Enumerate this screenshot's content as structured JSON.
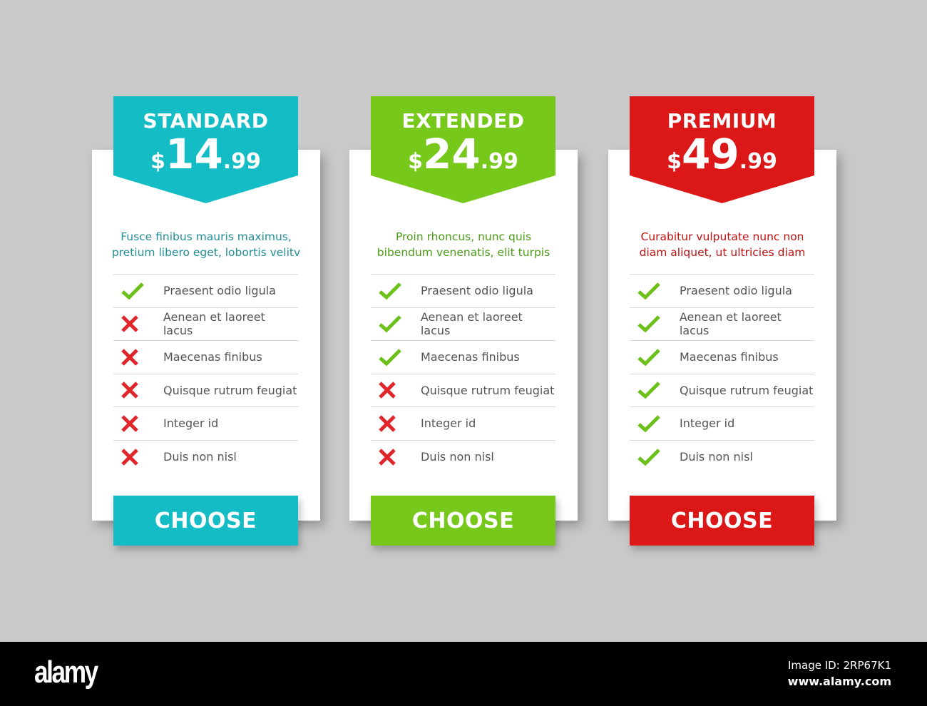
{
  "colors": {
    "background": "#c9c9c9",
    "standard": "#14bcc6",
    "extended": "#76c81a",
    "premium": "#dc1717",
    "check": "#6cc01a",
    "cross": "#e0262b"
  },
  "plans": [
    {
      "name": "STANDARD",
      "currency": "$",
      "price_int": "14",
      "price_dec": ".99",
      "accent": "#14bcc6",
      "desc_color": "#1f8f96",
      "desc1": "Fusce finibus mauris maximus,",
      "desc2": "pretium libero eget, lobortis velitv",
      "features": [
        {
          "label": "Praesent odio ligula",
          "included": true
        },
        {
          "label": "Aenean et laoreet lacus",
          "included": false
        },
        {
          "label": "Maecenas finibus",
          "included": false
        },
        {
          "label": "Quisque rutrum feugiat",
          "included": false
        },
        {
          "label": "Integer id",
          "included": false
        },
        {
          "label": "Duis non nisl",
          "included": false
        }
      ],
      "button": "CHOOSE"
    },
    {
      "name": "EXTENDED",
      "currency": "$",
      "price_int": "24",
      "price_dec": ".99",
      "accent": "#76c81a",
      "desc_color": "#4a9a15",
      "desc1": "Proin rhoncus, nunc quis",
      "desc2": "bibendum venenatis, elit turpis",
      "features": [
        {
          "label": "Praesent odio ligula",
          "included": true
        },
        {
          "label": "Aenean et laoreet lacus",
          "included": true
        },
        {
          "label": "Maecenas finibus",
          "included": true
        },
        {
          "label": "Quisque rutrum feugiat",
          "included": false
        },
        {
          "label": "Integer id",
          "included": false
        },
        {
          "label": "Duis non nisl",
          "included": false
        }
      ],
      "button": "CHOOSE"
    },
    {
      "name": "PREMIUM",
      "currency": "$",
      "price_int": "49",
      "price_dec": ".99",
      "accent": "#dc1717",
      "desc_color": "#c01010",
      "desc1": "Curabitur vulputate nunc non",
      "desc2": "diam aliquet, ut ultricies diam",
      "features": [
        {
          "label": "Praesent odio ligula",
          "included": true
        },
        {
          "label": "Aenean et laoreet lacus",
          "included": true
        },
        {
          "label": "Maecenas finibus",
          "included": true
        },
        {
          "label": "Quisque rutrum feugiat",
          "included": true
        },
        {
          "label": "Integer id",
          "included": true
        },
        {
          "label": "Duis non nisl",
          "included": true
        }
      ],
      "button": "CHOOSE"
    }
  ],
  "footer": {
    "logo": "alamy",
    "image_id": "Image ID: 2RP67K1",
    "site": "www.alamy.com"
  }
}
